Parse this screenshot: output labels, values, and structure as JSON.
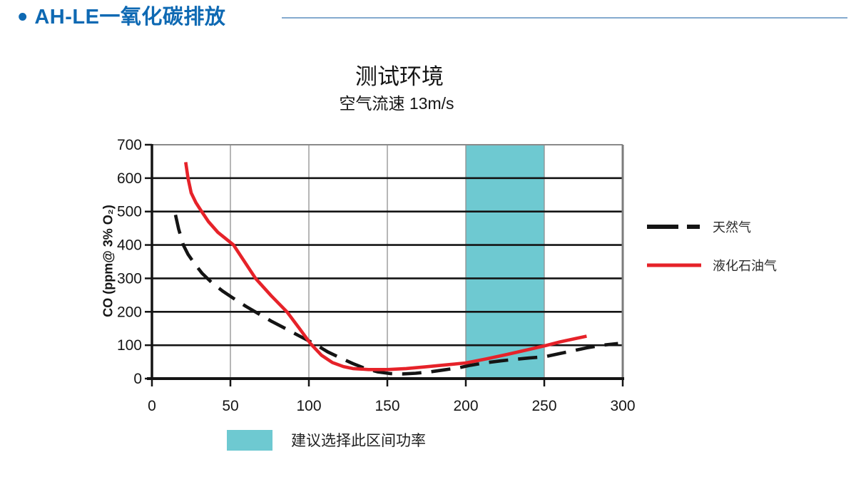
{
  "header": {
    "bullet": "•",
    "title": "AH-LE一氧化碳排放"
  },
  "chart": {
    "title": "测试环境",
    "subtitle": "空气流速 13m/s",
    "y_axis_label": "CO (ppm@ 3% O₂)"
  },
  "colors": {
    "header_blue": "#0e69b3",
    "header_rule": "#85aacf",
    "grid_major": "#141414",
    "grid_minor": "#909090",
    "frame_gray": "#7b7b7b"
  },
  "chart_data": {
    "type": "line",
    "title": "测试环境",
    "subtitle": "空气流速 13m/s",
    "xlabel": "",
    "ylabel": "CO (ppm@ 3% O₂)",
    "xlim": [
      0,
      300
    ],
    "ylim": [
      0,
      700
    ],
    "x_ticks": [
      0,
      50,
      100,
      150,
      200,
      250,
      300
    ],
    "y_ticks": [
      0,
      100,
      200,
      300,
      400,
      500,
      600,
      700
    ],
    "grid": true,
    "legend_position": "right",
    "highlight_band": {
      "x_from": 200,
      "x_to": 250,
      "color": "#6ec9d1",
      "label": "建议选择此区间功率"
    },
    "series": [
      {
        "name": "天然气",
        "style": "dashed",
        "color": "#141414",
        "points": [
          [
            15,
            490
          ],
          [
            17,
            448
          ],
          [
            20,
            400
          ],
          [
            23,
            372
          ],
          [
            27,
            345
          ],
          [
            32,
            315
          ],
          [
            38,
            288
          ],
          [
            45,
            262
          ],
          [
            52,
            240
          ],
          [
            60,
            216
          ],
          [
            68,
            194
          ],
          [
            76,
            172
          ],
          [
            85,
            150
          ],
          [
            93,
            130
          ],
          [
            100,
            113
          ],
          [
            105,
            100
          ],
          [
            112,
            80
          ],
          [
            120,
            62
          ],
          [
            128,
            45
          ],
          [
            136,
            30
          ],
          [
            144,
            20
          ],
          [
            152,
            15
          ],
          [
            160,
            14
          ],
          [
            168,
            16
          ],
          [
            177,
            20
          ],
          [
            186,
            26
          ],
          [
            195,
            32
          ],
          [
            203,
            40
          ],
          [
            212,
            47
          ],
          [
            222,
            53
          ],
          [
            232,
            58
          ],
          [
            241,
            62
          ],
          [
            250,
            65
          ],
          [
            259,
            74
          ],
          [
            268,
            83
          ],
          [
            277,
            92
          ],
          [
            287,
            100
          ],
          [
            297,
            105
          ]
        ]
      },
      {
        "name": "液化石油气",
        "style": "solid",
        "color": "#e62229",
        "points": [
          [
            21.5,
            648
          ],
          [
            23,
            600
          ],
          [
            25,
            556
          ],
          [
            28,
            527
          ],
          [
            31,
            505
          ],
          [
            36,
            470
          ],
          [
            42,
            438
          ],
          [
            52,
            400
          ],
          [
            59,
            350
          ],
          [
            66,
            300
          ],
          [
            76,
            248
          ],
          [
            86,
            200
          ],
          [
            94,
            150
          ],
          [
            101,
            105
          ],
          [
            108,
            70
          ],
          [
            115,
            48
          ],
          [
            122,
            36
          ],
          [
            128,
            30
          ],
          [
            138,
            27
          ],
          [
            150,
            27
          ],
          [
            162,
            30
          ],
          [
            174,
            35
          ],
          [
            187,
            41
          ],
          [
            200,
            47
          ],
          [
            213,
            59
          ],
          [
            226,
            72
          ],
          [
            239,
            86
          ],
          [
            251,
            99
          ],
          [
            260,
            110
          ],
          [
            269,
            119
          ],
          [
            277,
            127
          ]
        ]
      }
    ]
  }
}
